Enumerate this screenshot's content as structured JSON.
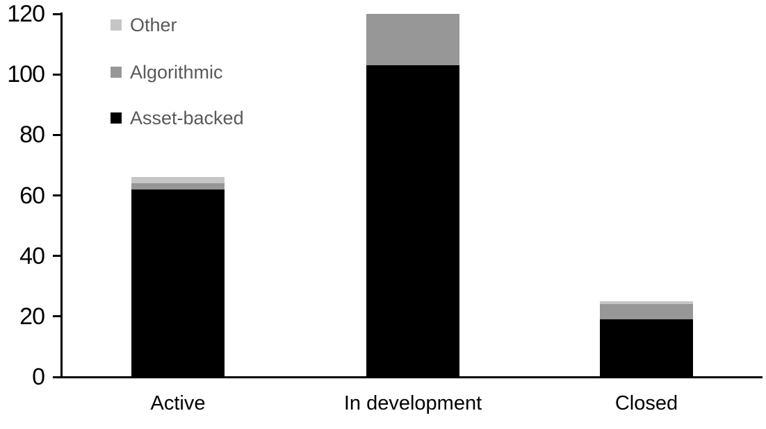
{
  "chart_data": {
    "type": "bar",
    "stacked": true,
    "title": "",
    "xlabel": "",
    "ylabel": "",
    "categories": [
      "Active",
      "In development",
      "Closed"
    ],
    "series": [
      {
        "name": "Asset-backed",
        "color": "#000000",
        "values": [
          62,
          103,
          19
        ]
      },
      {
        "name": "Algorithmic",
        "color": "#979797",
        "values": [
          2,
          17,
          5
        ]
      },
      {
        "name": "Other",
        "color": "#C5C5C5",
        "values": [
          2,
          0,
          1
        ]
      }
    ],
    "totals": [
      66,
      120,
      25
    ],
    "ylim": [
      0,
      120
    ],
    "yticks": [
      0,
      20,
      40,
      60,
      80,
      100,
      120
    ],
    "grid": false,
    "legend_position": "top-left",
    "legend_order_top_to_bottom": [
      "Other",
      "Algorithmic",
      "Asset-backed"
    ]
  },
  "colors": {
    "background": "#FFFFFF",
    "axis": "#000000",
    "tick_label_text": "#000000",
    "category_label_text": "#000000",
    "legend_text": "#595959"
  }
}
